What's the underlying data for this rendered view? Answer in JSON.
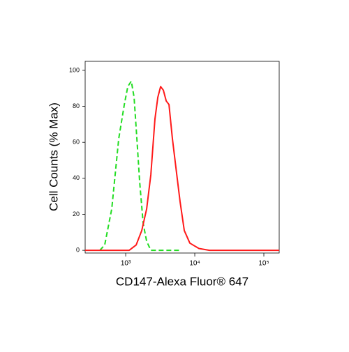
{
  "chart_data": {
    "type": "line",
    "xscale": "log",
    "xlabel": "CD147-Alexa Fluor® 647",
    "ylabel": "Cell Counts (% Max)",
    "xlim": [
      259,
      166800
    ],
    "ylim": [
      -1.5,
      105
    ],
    "xticks": [
      {
        "value": 1000,
        "label": "10³"
      },
      {
        "value": 10000,
        "label": "10⁴"
      },
      {
        "value": 100000,
        "label": "10⁵"
      }
    ],
    "yticks": [
      0,
      20,
      40,
      60,
      80,
      100
    ],
    "series": [
      {
        "color": "#22dd22",
        "dash": true,
        "x": [
          423,
          497,
          628,
          793,
          955,
          1072,
          1205,
          1322,
          1452,
          1592,
          1790,
          2010,
          2310,
          6430
        ],
        "values": [
          0,
          3,
          23,
          62,
          81,
          91,
          94,
          85,
          62,
          38,
          15,
          5,
          0,
          0
        ]
      },
      {
        "color": "#ff1a1a",
        "dash": false,
        "x": [
          259,
          1124,
          1418,
          1707,
          2010,
          2310,
          2655,
          2915,
          3200,
          3510,
          3855,
          4230,
          4750,
          5335,
          6135,
          7050,
          8490,
          11500,
          16300,
          166800
        ],
        "values": [
          0,
          0,
          3,
          11,
          23,
          42,
          73,
          85,
          91,
          89,
          83,
          81,
          62,
          46,
          27,
          11,
          4,
          1,
          0,
          0
        ]
      }
    ]
  }
}
